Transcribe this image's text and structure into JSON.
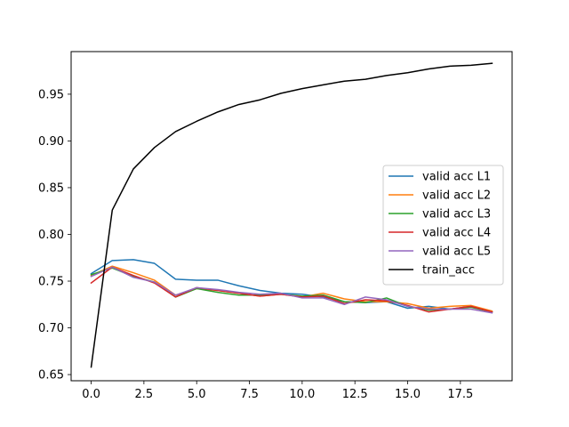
{
  "chart_data": {
    "type": "line",
    "title": "",
    "xlabel": "",
    "ylabel": "",
    "xlim": [
      -0.95,
      19.95
    ],
    "ylim": [
      0.6434,
      0.9956
    ],
    "xticks": [
      0.0,
      2.5,
      5.0,
      7.5,
      10.0,
      12.5,
      15.0,
      17.5
    ],
    "xtick_labels": [
      "0.0",
      "2.5",
      "5.0",
      "7.5",
      "10.0",
      "12.5",
      "15.0",
      "17.5"
    ],
    "yticks": [
      0.65,
      0.7,
      0.75,
      0.8,
      0.85,
      0.9,
      0.95
    ],
    "ytick_labels": [
      "0.65",
      "0.70",
      "0.75",
      "0.80",
      "0.85",
      "0.90",
      "0.95"
    ],
    "grid": false,
    "legend_position": "center-right",
    "x": [
      0,
      1,
      2,
      3,
      4,
      5,
      6,
      7,
      8,
      9,
      10,
      11,
      12,
      13,
      14,
      15,
      16,
      17,
      18,
      19
    ],
    "series": [
      {
        "name": "valid acc L1",
        "color": "#1f77b4",
        "values": [
          0.758,
          0.772,
          0.773,
          0.769,
          0.752,
          0.751,
          0.751,
          0.745,
          0.74,
          0.737,
          0.736,
          0.733,
          0.728,
          0.727,
          0.728,
          0.721,
          0.723,
          0.72,
          0.723,
          0.717
        ]
      },
      {
        "name": "valid acc L2",
        "color": "#ff7f0e",
        "values": [
          0.756,
          0.766,
          0.759,
          0.751,
          0.735,
          0.742,
          0.74,
          0.737,
          0.734,
          0.736,
          0.733,
          0.737,
          0.731,
          0.728,
          0.728,
          0.726,
          0.721,
          0.723,
          0.724,
          0.718
        ]
      },
      {
        "name": "valid acc L3",
        "color": "#2ca02c",
        "values": [
          0.757,
          0.764,
          0.755,
          0.749,
          0.733,
          0.742,
          0.738,
          0.735,
          0.735,
          0.736,
          0.734,
          0.735,
          0.728,
          0.727,
          0.732,
          0.723,
          0.719,
          0.72,
          0.722,
          0.717
        ]
      },
      {
        "name": "valid acc L4",
        "color": "#d62728",
        "values": [
          0.748,
          0.765,
          0.756,
          0.748,
          0.733,
          0.743,
          0.74,
          0.737,
          0.734,
          0.736,
          0.733,
          0.734,
          0.726,
          0.73,
          0.729,
          0.724,
          0.717,
          0.72,
          0.723,
          0.717
        ]
      },
      {
        "name": "valid acc L5",
        "color": "#9467bd",
        "values": [
          0.755,
          0.765,
          0.754,
          0.749,
          0.735,
          0.743,
          0.741,
          0.738,
          0.736,
          0.737,
          0.732,
          0.732,
          0.725,
          0.733,
          0.73,
          0.723,
          0.72,
          0.72,
          0.72,
          0.716
        ]
      },
      {
        "name": "train_acc",
        "color": "#000000",
        "values": [
          0.658,
          0.826,
          0.87,
          0.893,
          0.91,
          0.921,
          0.931,
          0.939,
          0.944,
          0.951,
          0.956,
          0.96,
          0.964,
          0.966,
          0.97,
          0.973,
          0.977,
          0.98,
          0.981,
          0.983
        ]
      }
    ]
  }
}
